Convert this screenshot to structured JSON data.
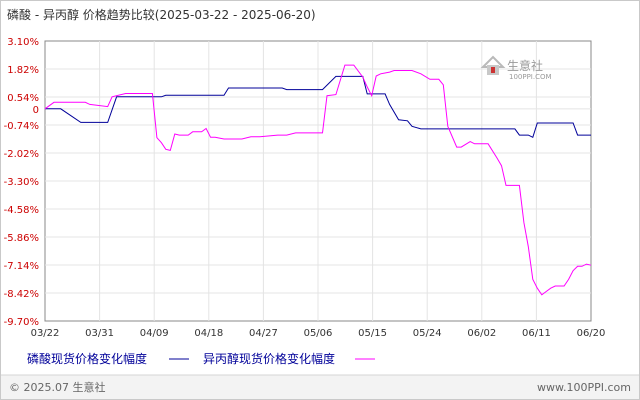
{
  "chart_data": {
    "type": "line",
    "title": "磷酸 - 异丙醇 价格趋势比较(2025-03-22 - 2025-06-20)",
    "xlabel": "",
    "ylabel": "",
    "ylim": [
      -9.7,
      3.1
    ],
    "y_ticks": [
      "3.10%",
      "1.82%",
      "0.54%",
      "0",
      "-0.74%",
      "-2.02%",
      "-3.30%",
      "-4.58%",
      "-5.86%",
      "-7.14%",
      "-8.42%",
      "-9.70%"
    ],
    "y_tick_values": [
      3.1,
      1.82,
      0.54,
      0,
      -0.74,
      -2.02,
      -3.3,
      -4.58,
      -5.86,
      -7.14,
      -8.42,
      -9.7
    ],
    "x_ticks": [
      "03/22",
      "03/31",
      "04/09",
      "04/18",
      "04/27",
      "05/06",
      "05/15",
      "05/24",
      "06/02",
      "06/11",
      "06/20"
    ],
    "x_range_days": [
      0,
      90
    ],
    "grid": true,
    "legend_position": "bottom",
    "series": [
      {
        "name": "磷酸现货价格变化幅度",
        "color": "#000099",
        "points": [
          [
            0,
            0
          ],
          [
            3.5,
            0
          ],
          [
            8,
            -0.62
          ],
          [
            14,
            -0.62
          ],
          [
            16,
            0.55
          ],
          [
            26,
            0.55
          ],
          [
            27,
            0.62
          ],
          [
            40,
            0.62
          ],
          [
            41,
            0.95
          ],
          [
            53,
            0.95
          ],
          [
            54,
            0.88
          ],
          [
            62,
            0.88
          ],
          [
            65,
            1.48
          ],
          [
            68,
            1.48
          ],
          [
            71,
            1.48
          ],
          [
            72,
            0.68
          ],
          [
            76,
            0.68
          ],
          [
            77,
            0.2
          ],
          [
            79,
            -0.5
          ],
          [
            81,
            -0.55
          ],
          [
            82,
            -0.8
          ],
          [
            84,
            -0.92
          ],
          [
            91,
            -0.92
          ],
          [
            96,
            -0.92
          ],
          [
            97,
            -0.92
          ],
          [
            105,
            -0.92
          ],
          [
            106,
            -1.2
          ],
          [
            108,
            -1.2
          ],
          [
            109,
            -1.3
          ],
          [
            110,
            -0.65
          ],
          [
            117,
            -0.65
          ],
          [
            118,
            -0.65
          ],
          [
            119,
            -1.2
          ],
          [
            122,
            -1.2
          ]
        ]
      },
      {
        "name": "异丙醇现货价格变化幅度",
        "color": "#ff00ff",
        "points": [
          [
            0,
            0
          ],
          [
            2,
            0.3
          ],
          [
            9,
            0.3
          ],
          [
            10,
            0.2
          ],
          [
            14,
            0.1
          ],
          [
            15,
            0.55
          ],
          [
            18,
            0.7
          ],
          [
            22,
            0.7
          ],
          [
            24,
            0.7
          ],
          [
            25,
            -1.32
          ],
          [
            26,
            -1.55
          ],
          [
            27,
            -1.85
          ],
          [
            28,
            -1.9
          ],
          [
            29,
            -1.15
          ],
          [
            30,
            -1.2
          ],
          [
            32,
            -1.2
          ],
          [
            33,
            -1.05
          ],
          [
            35,
            -1.05
          ],
          [
            36,
            -0.9
          ],
          [
            37,
            -1.3
          ],
          [
            38,
            -1.3
          ],
          [
            40,
            -1.38
          ],
          [
            42,
            -1.38
          ],
          [
            44,
            -1.38
          ],
          [
            46,
            -1.28
          ],
          [
            48,
            -1.28
          ],
          [
            52,
            -1.2
          ],
          [
            54,
            -1.2
          ],
          [
            56,
            -1.1
          ],
          [
            60,
            -1.1
          ],
          [
            62,
            -1.1
          ],
          [
            63,
            0.6
          ],
          [
            65,
            0.65
          ],
          [
            67,
            2.0
          ],
          [
            69,
            2.0
          ],
          [
            71,
            1.45
          ],
          [
            72,
            1.0
          ],
          [
            73,
            0.6
          ],
          [
            74,
            1.5
          ],
          [
            75,
            1.6
          ],
          [
            77,
            1.68
          ],
          [
            78,
            1.75
          ],
          [
            80,
            1.75
          ],
          [
            82,
            1.75
          ],
          [
            84,
            1.6
          ],
          [
            86,
            1.35
          ],
          [
            88,
            1.35
          ],
          [
            89,
            1.1
          ],
          [
            90,
            -0.8
          ],
          [
            92,
            -1.75
          ],
          [
            93,
            -1.75
          ],
          [
            95,
            -1.5
          ],
          [
            96,
            -1.6
          ],
          [
            98,
            -1.6
          ],
          [
            99,
            -1.6
          ],
          [
            101,
            -2.25
          ],
          [
            102,
            -2.6
          ],
          [
            103,
            -3.5
          ],
          [
            106,
            -3.5
          ],
          [
            107,
            -5.2
          ],
          [
            108,
            -6.3
          ],
          [
            109,
            -7.8
          ],
          [
            110,
            -8.2
          ],
          [
            111,
            -8.5
          ],
          [
            112,
            -8.35
          ],
          [
            113,
            -8.2
          ],
          [
            114,
            -8.1
          ],
          [
            116,
            -8.1
          ],
          [
            117,
            -7.8
          ],
          [
            118,
            -7.4
          ],
          [
            119,
            -7.2
          ],
          [
            120,
            -7.2
          ],
          [
            121,
            -7.1
          ],
          [
            122,
            -7.15
          ]
        ]
      }
    ]
  },
  "watermark": {
    "name": "生意社",
    "url": "100PPI.COM"
  },
  "footer": {
    "left": "© 2025.07 生意社",
    "right": "www.100PPI.com"
  }
}
